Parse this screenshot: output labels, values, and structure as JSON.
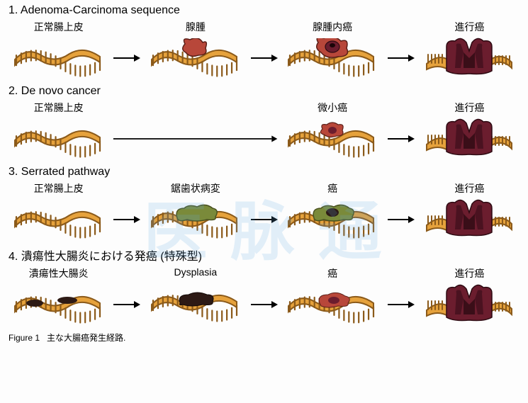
{
  "colors": {
    "colon_fill": "#e6a23c",
    "colon_stroke": "#8b5a1a",
    "adenoma_fill": "#b8473a",
    "carcinoma_fill": "#6b1d2e",
    "serrated_fill": "#7a8a3a",
    "dark_lesion": "#2d1a15",
    "arrow": "#000000",
    "text": "#000000",
    "background": "#fdfdfd",
    "watermark": "rgba(100,170,230,0.18)"
  },
  "pathways": [
    {
      "number": "1.",
      "title": "Adenoma-Carcinoma sequence",
      "stages": [
        {
          "label": "正常腸上皮",
          "type": "normal"
        },
        {
          "label": "腺腫",
          "type": "adenoma"
        },
        {
          "label": "腺腫内癌",
          "type": "carcinoma-in-adenoma"
        },
        {
          "label": "進行癌",
          "type": "advanced"
        }
      ],
      "arrows": [
        true,
        true,
        true
      ]
    },
    {
      "number": "2.",
      "title": "De novo cancer",
      "stages": [
        {
          "label": "正常腸上皮",
          "type": "normal"
        },
        null,
        {
          "label": "微小癌",
          "type": "micro-carcinoma"
        },
        {
          "label": "進行癌",
          "type": "advanced"
        }
      ],
      "long_arrow_to": 2
    },
    {
      "number": "3.",
      "title": "Serrated pathway",
      "stages": [
        {
          "label": "正常腸上皮",
          "type": "normal"
        },
        {
          "label": "鋸歯状病変",
          "type": "serrated"
        },
        {
          "label": "癌",
          "type": "serrated-ca"
        },
        {
          "label": "進行癌",
          "type": "advanced"
        }
      ],
      "arrows": [
        true,
        true,
        true
      ]
    },
    {
      "number": "4.",
      "title": "潰瘍性大腸炎における発癌 (特殊型)",
      "stages": [
        {
          "label": "潰瘍性大腸炎",
          "type": "uc"
        },
        {
          "label": "Dysplasia",
          "type": "dysplasia"
        },
        {
          "label": "癌",
          "type": "uc-ca"
        },
        {
          "label": "進行癌",
          "type": "advanced"
        }
      ],
      "arrows": [
        true,
        true,
        true
      ]
    }
  ],
  "caption_prefix": "Figure 1",
  "caption_text": "主な大腸癌発生経路.",
  "watermark_text": "医 脉 通",
  "tissue_svg": {
    "width": 140,
    "height": 55
  }
}
